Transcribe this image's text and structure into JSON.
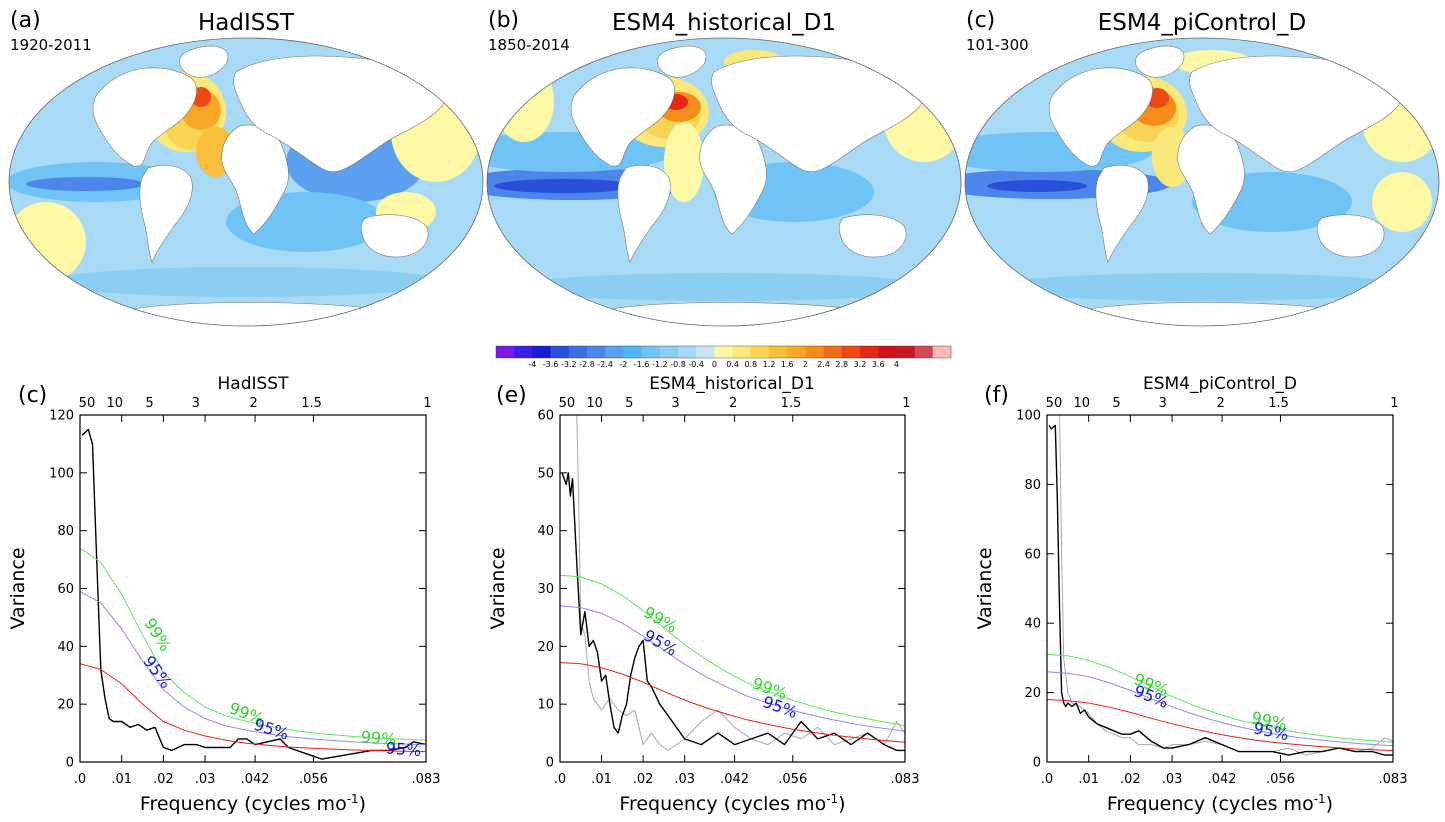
{
  "maps": [
    {
      "letter": "(a)",
      "title": "HadISST",
      "period": "1920-2011",
      "variant": 0
    },
    {
      "letter": "(b)",
      "title": "ESM4_historical_D1",
      "period": "1850-2014",
      "variant": 1
    },
    {
      "letter": "(c)",
      "title": "ESM4_piControl_D",
      "period": "101-300",
      "variant": 2
    }
  ],
  "colorbar": {
    "colors": [
      "#7b18e6",
      "#3c1ef0",
      "#1c1cd6",
      "#2a4fd9",
      "#3d6ee3",
      "#4c86ea",
      "#5aa0ee",
      "#4cb8f5",
      "#70c4f5",
      "#8ccdf2",
      "#a9daf5",
      "#c6e6f7",
      "#fdf8a6",
      "#fbe87b",
      "#f9d454",
      "#f8bf3a",
      "#f7a826",
      "#f58c1b",
      "#f26d16",
      "#ee4815",
      "#e52713",
      "#d5121b",
      "#c81a26",
      "#cf4a55",
      "#fbb8b8"
    ],
    "labels": [
      "-4",
      "-3.6",
      "-3.2",
      "-2.8",
      "-2.4",
      "-2",
      "-1.6",
      "-1.2",
      "-0.8",
      "-0.4",
      "0",
      "0.4",
      "0.8",
      "1.2",
      "1.6",
      "2",
      "2.4",
      "2.8",
      "3.2",
      "3.6",
      "4"
    ]
  },
  "axis_labels": {
    "x": "Frequency (cycles mo",
    "x_sup": "-1",
    "x_close": ")",
    "y": "Variance"
  },
  "chart_data": [
    {
      "type": "line",
      "letter": "(c)",
      "title": "HadISST",
      "xlabel": "Frequency (cycles mo-1)",
      "ylabel": "Variance",
      "xlim": [
        0,
        0.083
      ],
      "ylim": [
        0,
        120
      ],
      "x_ticks": [
        0,
        0.01,
        0.02,
        0.03,
        0.042,
        0.056,
        0.083
      ],
      "x_tick_labels": [
        ".0",
        ".01",
        ".02",
        ".03",
        ".042",
        ".056",
        ".083"
      ],
      "y_ticks": [
        0,
        20,
        40,
        60,
        80,
        100,
        120
      ],
      "top_ticks": [
        50,
        10,
        5,
        3,
        2,
        1.5,
        1
      ],
      "series": [
        {
          "color": "#000000",
          "x": [
            0.0005,
            0.002,
            0.003,
            0.004,
            0.005,
            0.006,
            0.007,
            0.008,
            0.01,
            0.012,
            0.014,
            0.016,
            0.018,
            0.02,
            0.022,
            0.025,
            0.028,
            0.03,
            0.033,
            0.036,
            0.038,
            0.04,
            0.042,
            0.045,
            0.048,
            0.05,
            0.054,
            0.058,
            0.062,
            0.066,
            0.07,
            0.074,
            0.078,
            0.08,
            0.083
          ],
          "y": [
            113,
            115,
            110,
            70,
            32,
            22,
            15,
            14,
            14,
            12,
            13,
            11,
            12,
            5,
            4,
            6,
            6,
            5,
            5,
            5,
            8,
            8,
            6,
            7,
            8,
            5,
            3,
            1,
            2,
            3,
            4,
            4,
            5,
            7,
            6
          ]
        },
        {
          "color": "#ee1c1c",
          "x": [
            0,
            0.005,
            0.01,
            0.015,
            0.02,
            0.025,
            0.03,
            0.035,
            0.04,
            0.045,
            0.05,
            0.055,
            0.06,
            0.065,
            0.07,
            0.075,
            0.083
          ],
          "y": [
            34,
            32,
            27,
            20,
            14,
            11,
            9,
            7.5,
            6.5,
            5.8,
            5.2,
            4.8,
            4.5,
            4.2,
            4,
            3.8,
            3.6
          ]
        },
        {
          "color": "#8c8cf5",
          "x": [
            0,
            0.005,
            0.01,
            0.015,
            0.02,
            0.025,
            0.03,
            0.035,
            0.04,
            0.045,
            0.05,
            0.055,
            0.06,
            0.065,
            0.07,
            0.075,
            0.083
          ],
          "y": [
            59,
            55,
            46,
            35,
            25,
            19,
            15,
            12.5,
            11,
            9.8,
            8.8,
            8.1,
            7.5,
            7,
            6.6,
            6.3,
            6
          ]
        },
        {
          "color": "#5ee65e",
          "x": [
            0,
            0.005,
            0.01,
            0.015,
            0.02,
            0.025,
            0.03,
            0.035,
            0.04,
            0.045,
            0.05,
            0.055,
            0.06,
            0.065,
            0.07,
            0.075,
            0.083
          ],
          "y": [
            74,
            69,
            58,
            44,
            31,
            24,
            19,
            16,
            14,
            12.5,
            11.2,
            10.2,
            9.5,
            8.9,
            8.4,
            8,
            7.6
          ]
        }
      ],
      "labels": [
        {
          "text": "99%",
          "x": 0.0175,
          "y": 43,
          "angle": 58,
          "color": "#2dd82d"
        },
        {
          "text": "95%",
          "x": 0.0175,
          "y": 30,
          "angle": 54,
          "color": "#1a1ad8"
        },
        {
          "text": "99%",
          "x": 0.0395,
          "y": 15,
          "angle": 20,
          "color": "#2dd82d"
        },
        {
          "text": "95%",
          "x": 0.0455,
          "y": 9.5,
          "angle": 18,
          "color": "#1a1ad8"
        },
        {
          "text": "99%",
          "x": 0.0715,
          "y": 6.3,
          "angle": 5,
          "color": "#2dd82d"
        },
        {
          "text": "95%",
          "x": 0.0775,
          "y": 2.5,
          "angle": 5,
          "color": "#1a1ad8"
        }
      ]
    },
    {
      "type": "line",
      "letter": "(e)",
      "title": "ESM4_historical_D1",
      "xlabel": "Frequency (cycles mo-1)",
      "ylabel": "Variance",
      "xlim": [
        0,
        0.083
      ],
      "ylim": [
        0,
        60
      ],
      "x_ticks": [
        0,
        0.01,
        0.02,
        0.03,
        0.042,
        0.056,
        0.083
      ],
      "x_tick_labels": [
        ".0",
        ".01",
        ".02",
        ".03",
        ".042",
        ".056",
        ".083"
      ],
      "y_ticks": [
        0,
        10,
        20,
        30,
        40,
        50,
        60
      ],
      "top_ticks": [
        50,
        10,
        5,
        3,
        2,
        1.5,
        1
      ],
      "series": [
        {
          "color": "#a8a8a8",
          "x": [
            0.004,
            0.0045,
            0.005,
            0.006,
            0.007,
            0.008,
            0.01,
            0.012,
            0.014,
            0.016,
            0.018,
            0.02,
            0.022,
            0.024,
            0.026,
            0.028,
            0.03,
            0.034,
            0.038,
            0.042,
            0.046,
            0.05,
            0.054,
            0.058,
            0.062,
            0.066,
            0.07,
            0.074,
            0.078,
            0.081,
            0.083
          ],
          "y": [
            62,
            45,
            24,
            22,
            14,
            11,
            9,
            11,
            9,
            8,
            9,
            3,
            5,
            3,
            2,
            3,
            4,
            7,
            9,
            6,
            4,
            3,
            5,
            4,
            6,
            3,
            4,
            5,
            3,
            7,
            5
          ]
        },
        {
          "color": "#000000",
          "x": [
            0.0005,
            0.0015,
            0.002,
            0.0025,
            0.003,
            0.004,
            0.005,
            0.006,
            0.007,
            0.008,
            0.009,
            0.01,
            0.011,
            0.012,
            0.013,
            0.014,
            0.015,
            0.016,
            0.017,
            0.018,
            0.019,
            0.02,
            0.021,
            0.022,
            0.024,
            0.026,
            0.028,
            0.03,
            0.034,
            0.038,
            0.042,
            0.046,
            0.05,
            0.054,
            0.058,
            0.062,
            0.066,
            0.07,
            0.074,
            0.078,
            0.081,
            0.083
          ],
          "y": [
            50,
            48,
            50,
            46,
            49,
            35,
            22,
            26,
            20,
            21,
            19,
            14,
            15,
            10,
            6,
            5,
            8,
            10,
            15,
            18,
            20,
            21,
            14,
            13,
            10,
            8,
            6,
            4,
            3,
            5,
            3,
            4,
            5,
            3,
            7,
            4,
            5,
            3,
            5,
            3,
            2,
            2
          ]
        },
        {
          "color": "#ee1c1c",
          "x": [
            0,
            0.005,
            0.01,
            0.015,
            0.02,
            0.025,
            0.03,
            0.035,
            0.04,
            0.045,
            0.05,
            0.055,
            0.06,
            0.065,
            0.07,
            0.075,
            0.083
          ],
          "y": [
            17.2,
            17,
            16.3,
            15.2,
            13.8,
            12.2,
            10.7,
            9.4,
            8.3,
            7.3,
            6.5,
            5.8,
            5.2,
            4.7,
            4.3,
            3.9,
            3.4
          ]
        },
        {
          "color": "#8c8cf5",
          "x": [
            0,
            0.005,
            0.01,
            0.015,
            0.02,
            0.025,
            0.03,
            0.035,
            0.04,
            0.045,
            0.05,
            0.055,
            0.06,
            0.065,
            0.07,
            0.075,
            0.083
          ],
          "y": [
            27,
            26.7,
            25.7,
            24,
            21.8,
            19.3,
            16.9,
            14.8,
            13,
            11.4,
            10.2,
            9.1,
            8.2,
            7.4,
            6.7,
            6.1,
            5.3
          ]
        },
        {
          "color": "#5ee65e",
          "x": [
            0,
            0.005,
            0.01,
            0.015,
            0.02,
            0.025,
            0.03,
            0.035,
            0.04,
            0.045,
            0.05,
            0.055,
            0.06,
            0.065,
            0.07,
            0.075,
            0.083
          ],
          "y": [
            32.3,
            32,
            30.8,
            28.8,
            26.2,
            23.2,
            20.3,
            17.8,
            15.6,
            13.7,
            12.2,
            10.9,
            9.8,
            8.8,
            8,
            7.3,
            6.3
          ]
        }
      ],
      "labels": [
        {
          "text": "99%",
          "x": 0.0235,
          "y": 23.8,
          "angle": 30,
          "color": "#2dd82d"
        },
        {
          "text": "95%",
          "x": 0.0235,
          "y": 19.8,
          "angle": 30,
          "color": "#1a1ad8"
        },
        {
          "text": "99%",
          "x": 0.05,
          "y": 11.8,
          "angle": 20,
          "color": "#2dd82d"
        },
        {
          "text": "95%",
          "x": 0.0525,
          "y": 8.6,
          "angle": 20,
          "color": "#1a1ad8"
        }
      ]
    },
    {
      "type": "line",
      "letter": "(f)",
      "title": "ESM4_piControl_D",
      "xlabel": "Frequency (cycles mo-1)",
      "ylabel": "Variance",
      "xlim": [
        0,
        0.083
      ],
      "ylim": [
        0,
        100
      ],
      "x_ticks": [
        0,
        0.01,
        0.02,
        0.03,
        0.042,
        0.056,
        0.083
      ],
      "x_tick_labels": [
        ".0",
        ".01",
        ".02",
        ".03",
        ".042",
        ".056",
        ".083"
      ],
      "y_ticks": [
        0,
        20,
        40,
        60,
        80,
        100
      ],
      "top_ticks": [
        50,
        10,
        5,
        3,
        2,
        1.5,
        1
      ],
      "series": [
        {
          "color": "#a8a8a8",
          "x": [
            0.003,
            0.0035,
            0.004,
            0.005,
            0.006,
            0.008,
            0.01,
            0.012,
            0.014,
            0.016,
            0.018,
            0.02,
            0.022,
            0.025,
            0.028,
            0.03,
            0.034,
            0.038,
            0.042,
            0.046,
            0.05,
            0.054,
            0.058,
            0.062,
            0.066,
            0.07,
            0.074,
            0.078,
            0.081,
            0.083
          ],
          "y": [
            101,
            60,
            30,
            20,
            17,
            16,
            14,
            11,
            9,
            8,
            7,
            7,
            5,
            5,
            4,
            5,
            5,
            6,
            5,
            3,
            3,
            3,
            4,
            2,
            3,
            4,
            3,
            4,
            7,
            6
          ]
        },
        {
          "color": "#000000",
          "x": [
            0.0005,
            0.001,
            0.002,
            0.0025,
            0.003,
            0.0035,
            0.004,
            0.0045,
            0.005,
            0.006,
            0.007,
            0.008,
            0.009,
            0.01,
            0.012,
            0.014,
            0.016,
            0.018,
            0.02,
            0.022,
            0.025,
            0.028,
            0.03,
            0.034,
            0.038,
            0.042,
            0.046,
            0.05,
            0.054,
            0.058,
            0.062,
            0.066,
            0.07,
            0.074,
            0.078,
            0.081,
            0.083
          ],
          "y": [
            97,
            96,
            97,
            75,
            45,
            20,
            17,
            16,
            17,
            16,
            17,
            14,
            15,
            13,
            11,
            10,
            9,
            8,
            8,
            9,
            6,
            4,
            4,
            5,
            7,
            5,
            3,
            3,
            3,
            2,
            3,
            3,
            4,
            3,
            3,
            2,
            2
          ]
        },
        {
          "color": "#ee1c1c",
          "x": [
            0,
            0.005,
            0.01,
            0.015,
            0.02,
            0.025,
            0.03,
            0.035,
            0.04,
            0.045,
            0.05,
            0.055,
            0.06,
            0.065,
            0.07,
            0.075,
            0.083
          ],
          "y": [
            18,
            17.7,
            17,
            15.8,
            14.3,
            12.6,
            11,
            9.6,
            8.3,
            7.2,
            6.3,
            5.6,
            5,
            4.5,
            4.1,
            3.7,
            3.3
          ]
        },
        {
          "color": "#8c8cf5",
          "x": [
            0,
            0.005,
            0.01,
            0.015,
            0.02,
            0.025,
            0.03,
            0.035,
            0.04,
            0.045,
            0.05,
            0.055,
            0.06,
            0.065,
            0.07,
            0.075,
            0.083
          ],
          "y": [
            26,
            25.6,
            24.6,
            22.8,
            20.6,
            18.2,
            15.9,
            13.8,
            12,
            10.4,
            9.1,
            8,
            7.1,
            6.4,
            5.8,
            5.3,
            4.7
          ]
        },
        {
          "color": "#5ee65e",
          "x": [
            0,
            0.005,
            0.01,
            0.015,
            0.02,
            0.025,
            0.03,
            0.035,
            0.04,
            0.045,
            0.05,
            0.055,
            0.06,
            0.065,
            0.07,
            0.075,
            0.083
          ],
          "y": [
            31,
            30.6,
            29.3,
            27.2,
            24.6,
            21.7,
            18.9,
            16.4,
            14.3,
            12.4,
            10.9,
            9.6,
            8.6,
            7.7,
            7,
            6.4,
            5.7
          ]
        }
      ],
      "labels": [
        {
          "text": "99%",
          "x": 0.0245,
          "y": 20.8,
          "angle": 22,
          "color": "#2dd82d"
        },
        {
          "text": "95%",
          "x": 0.0245,
          "y": 17.4,
          "angle": 22,
          "color": "#1a1ad8"
        },
        {
          "text": "99%",
          "x": 0.053,
          "y": 10.3,
          "angle": 12,
          "color": "#2dd82d"
        },
        {
          "text": "95%",
          "x": 0.0535,
          "y": 7.3,
          "angle": 12,
          "color": "#1a1ad8"
        }
      ]
    }
  ]
}
